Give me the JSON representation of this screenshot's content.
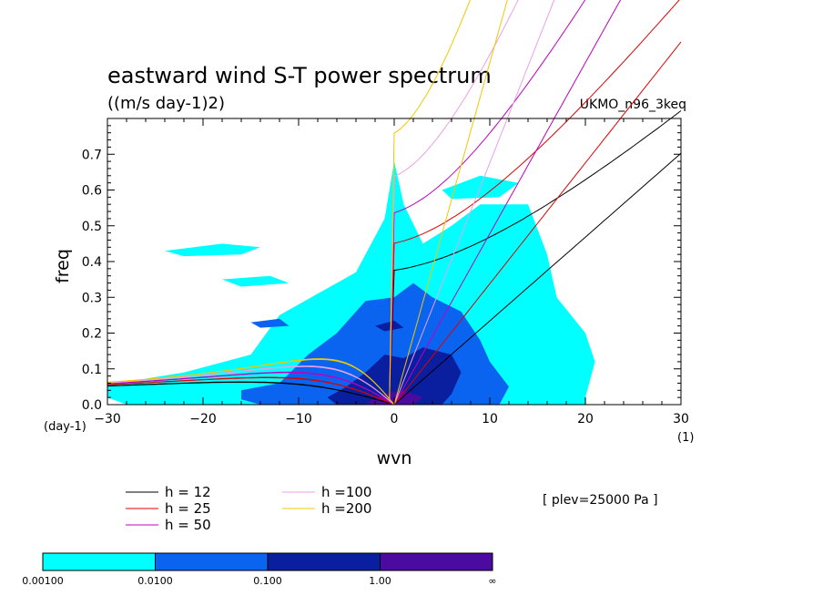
{
  "chart_data": {
    "type": "contour",
    "title": "eastward wind S-T power spectrum",
    "subtitle": "((m/s day-1)2)",
    "dataset_label": "UKMO_n96_3keq",
    "xlabel": "wvn",
    "ylabel": "freq",
    "x_unit": "(1)",
    "y_unit": "(day-1)",
    "xlim": [
      -30,
      30
    ],
    "ylim": [
      0,
      0.8
    ],
    "x_ticks": [
      "−30",
      "−20",
      "−10",
      "0",
      "10",
      "20",
      "30"
    ],
    "y_ticks": [
      "0.0",
      "0.1",
      "0.2",
      "0.3",
      "0.4",
      "0.5",
      "0.6",
      "0.7"
    ],
    "level_note": "[ plev=25000 Pa ]",
    "legend": [
      {
        "label": "h = 12",
        "h": 12,
        "color": "#000000"
      },
      {
        "label": "h = 25",
        "h": 25,
        "color": "#e00000"
      },
      {
        "label": "h = 50",
        "h": 50,
        "color": "#c000c0"
      },
      {
        "label": "h =100",
        "h": 100,
        "color": "#e8a0e8"
      },
      {
        "label": "h =200",
        "h": 200,
        "color": "#f0c800"
      }
    ],
    "colorbar": {
      "boundaries": [
        "0.00100",
        "0.0100",
        "0.100",
        "1.00",
        "∞"
      ],
      "colors": [
        "#00ffff",
        "#0a64f0",
        "#0a1ea0",
        "#4b0aa0"
      ]
    },
    "shaded_regions": [
      {
        "level": 0,
        "polygon": [
          [
            -30,
            0.055
          ],
          [
            -22,
            0.09
          ],
          [
            -15,
            0.14
          ],
          [
            -12,
            0.25
          ],
          [
            -8,
            0.31
          ],
          [
            -4,
            0.37
          ],
          [
            -1,
            0.52
          ],
          [
            0,
            0.68
          ],
          [
            1,
            0.56
          ],
          [
            3,
            0.45
          ],
          [
            6,
            0.5
          ],
          [
            9,
            0.56
          ],
          [
            14,
            0.56
          ],
          [
            16,
            0.42
          ],
          [
            17,
            0.3
          ],
          [
            20,
            0.2
          ],
          [
            21,
            0.12
          ],
          [
            20,
            0.02
          ],
          [
            20,
            0
          ],
          [
            -28,
            0
          ],
          [
            -30,
            0.02
          ]
        ]
      },
      {
        "level": 0,
        "polygon": [
          [
            -24,
            0.43
          ],
          [
            -18,
            0.45
          ],
          [
            -14,
            0.44
          ],
          [
            -16,
            0.42
          ],
          [
            -22,
            0.415
          ]
        ]
      },
      {
        "level": 0,
        "polygon": [
          [
            5,
            0.6
          ],
          [
            9,
            0.64
          ],
          [
            13,
            0.62
          ],
          [
            11,
            0.58
          ],
          [
            6,
            0.575
          ]
        ]
      },
      {
        "level": 0,
        "polygon": [
          [
            -18,
            0.35
          ],
          [
            -13,
            0.36
          ],
          [
            -11,
            0.34
          ],
          [
            -16,
            0.33
          ]
        ]
      },
      {
        "level": 1,
        "polygon": [
          [
            -16,
            0.04
          ],
          [
            -12,
            0.06
          ],
          [
            -9,
            0.14
          ],
          [
            -6,
            0.2
          ],
          [
            -3,
            0.29
          ],
          [
            0,
            0.3
          ],
          [
            2,
            0.34
          ],
          [
            4,
            0.3
          ],
          [
            7,
            0.26
          ],
          [
            9,
            0.18
          ],
          [
            10,
            0.12
          ],
          [
            12,
            0.05
          ],
          [
            11,
            0
          ],
          [
            -14,
            0
          ],
          [
            -16,
            0.015
          ]
        ]
      },
      {
        "level": 1,
        "polygon": [
          [
            -15,
            0.23
          ],
          [
            -12,
            0.24
          ],
          [
            -11,
            0.22
          ],
          [
            -14,
            0.215
          ]
        ]
      },
      {
        "level": 2,
        "polygon": [
          [
            -7,
            0.02
          ],
          [
            -5,
            0.05
          ],
          [
            -3,
            0.09
          ],
          [
            -1,
            0.14
          ],
          [
            1,
            0.13
          ],
          [
            3,
            0.16
          ],
          [
            6,
            0.14
          ],
          [
            7,
            0.09
          ],
          [
            6,
            0.03
          ],
          [
            5,
            0
          ],
          [
            -6,
            0
          ]
        ]
      },
      {
        "level": 2,
        "polygon": [
          [
            -2,
            0.22
          ],
          [
            0,
            0.235
          ],
          [
            1,
            0.215
          ],
          [
            -1,
            0.205
          ]
        ]
      },
      {
        "level": 3,
        "polygon": [
          [
            -3,
            0.005
          ],
          [
            -1,
            0.03
          ],
          [
            1,
            0.04
          ],
          [
            3,
            0.02
          ],
          [
            2,
            0
          ],
          [
            -2,
            0
          ]
        ]
      }
    ]
  }
}
